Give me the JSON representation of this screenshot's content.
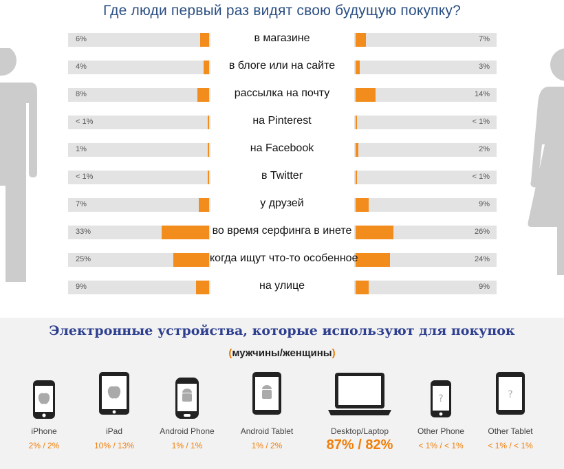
{
  "chart_data": [
    {
      "type": "bar",
      "orientation": "diverging-horizontal",
      "title": "Где люди первый раз видят свою будущую покупку?",
      "categories": [
        "в магазине",
        "в блоге или на сайте",
        "рассылка на почту",
        "на Pinterest",
        "на Facebook",
        "в Twitter",
        "у друзей",
        "во время серфинга в инете",
        "когда ищут что-то особенное",
        "на улице"
      ],
      "series": [
        {
          "values": [
            6,
            4,
            8,
            0.5,
            1,
            0.5,
            7,
            33,
            25,
            9
          ],
          "labels": [
            "6%",
            "4%",
            "8%",
            "< 1%",
            "1%",
            "< 1%",
            "7%",
            "33%",
            "25%",
            "9%"
          ]
        },
        {
          "values": [
            7,
            3,
            14,
            0.5,
            2,
            0.5,
            9,
            26,
            24,
            9
          ],
          "labels": [
            "7%",
            "3%",
            "14%",
            "< 1%",
            "2%",
            "< 1%",
            "9%",
            "26%",
            "24%",
            "9%"
          ]
        }
      ],
      "xlim": [
        0,
        100
      ],
      "bar_color": "#f28c1c",
      "track_color": "#e3e3e3"
    },
    {
      "type": "table",
      "title": "Электронные устройства, которые используют для покупок",
      "subtitle_parts": [
        "(",
        "мужчины/женщины",
        ")"
      ],
      "devices": [
        {
          "name": "iPhone",
          "stat": "2% / 2%",
          "icon": "iphone-icon"
        },
        {
          "name": "iPad",
          "stat": "10% / 13%",
          "icon": "ipad-icon"
        },
        {
          "name": "Android Phone",
          "stat": "1% / 1%",
          "icon": "android-phone-icon"
        },
        {
          "name": "Android Tablet",
          "stat": "1% / 2%",
          "icon": "android-tablet-icon"
        },
        {
          "name": "Desktop/Laptop",
          "stat": "87% / 82%",
          "icon": "laptop-icon"
        },
        {
          "name": "Other Phone",
          "stat": "< 1% / < 1%",
          "icon": "other-phone-icon"
        },
        {
          "name": "Other Tablet",
          "stat": "< 1% / < 1%",
          "icon": "other-tablet-icon"
        }
      ]
    }
  ],
  "colors": {
    "accent": "#f28c1c",
    "title": "#2b4f83",
    "devices_title": "#2d3f8e",
    "silhouette": "#cccccc"
  },
  "icons": {
    "left_figure": "man-silhouette-icon",
    "right_figure": "woman-silhouette-icon"
  }
}
